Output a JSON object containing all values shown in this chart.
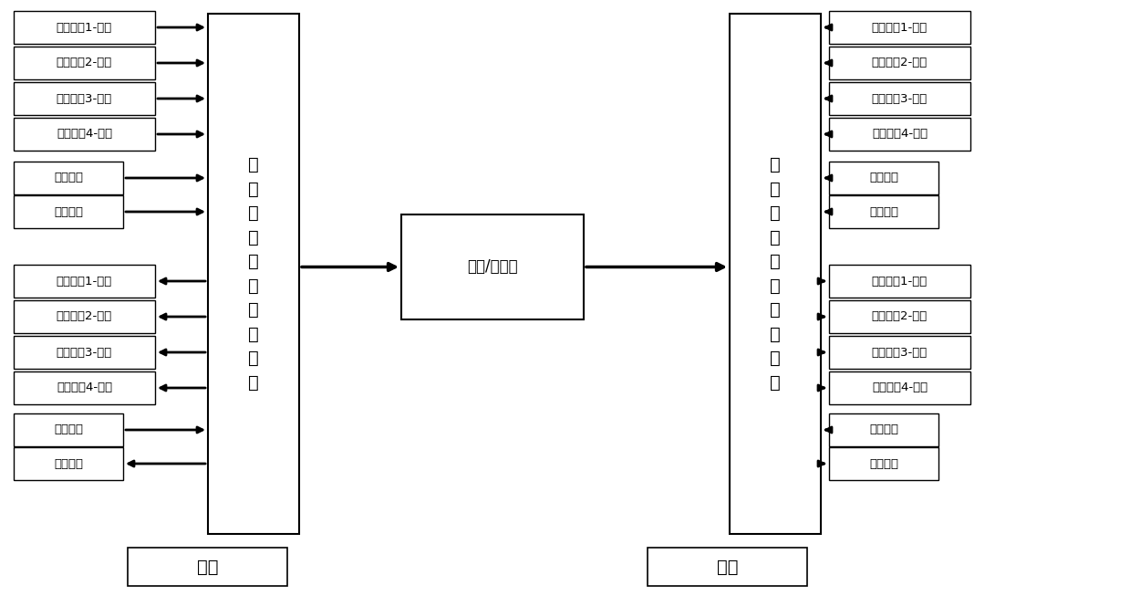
{
  "bg_color": "#ffffff",
  "box_edge_color": "#000000",
  "arrow_color": "#000000",
  "text_color": "#000000",
  "left_chip_label": "百\n兆\n以\n太\n网\n收\n发\n器\n芯\n片",
  "right_chip_label": "百\n兆\n以\n太\n网\n收\n发\n器\n芯\n片",
  "middle_label": "光纤/双绞线",
  "local_label": "局端",
  "remote_label": "远端",
  "left_send_labels": [
    "数据信号1-发送",
    "数据信号2-发送",
    "数据信号3-发送",
    "数据信号4-发送"
  ],
  "left_send_ctrl": [
    "发送时钟",
    "发送使能"
  ],
  "left_recv_labels": [
    "数据信号1-接收",
    "数据信号2-接收",
    "数据信号3-接收",
    "数据信号4-接收"
  ],
  "left_recv_ctrl": [
    "接收时钟",
    "接收使能"
  ],
  "right_send_labels": [
    "数据信号1-发送",
    "数据信号2-发送",
    "数据信号3-发送",
    "数据信号4-发送"
  ],
  "right_send_ctrl": [
    "发送时钟",
    "发送使能"
  ],
  "right_recv_labels": [
    "数据信号1-接收",
    "数据信号2-接收",
    "数据信号3-接收",
    "数据信号4-接收"
  ],
  "right_recv_ctrl": [
    "接收时钟",
    "接收使能"
  ],
  "left_directions": [
    "right",
    "right",
    "right",
    "right",
    "right",
    "right",
    "left",
    "left",
    "left",
    "left",
    "right",
    "left"
  ],
  "right_directions": [
    "left",
    "left",
    "left",
    "left",
    "left",
    "left",
    "right",
    "right",
    "right",
    "right",
    "left",
    "right"
  ]
}
